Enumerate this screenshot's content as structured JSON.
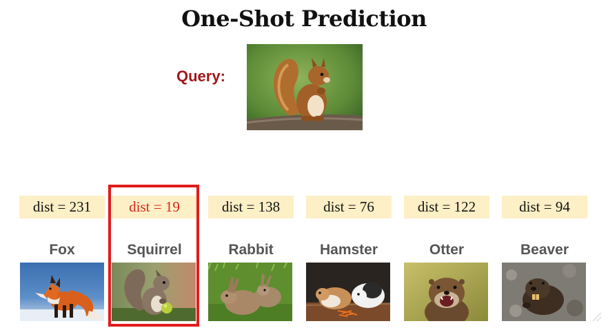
{
  "title": "One-Shot Prediction",
  "query": {
    "label": "Query:"
  },
  "candidates": [
    {
      "name": "Fox",
      "dist": "dist = 231",
      "selected": false
    },
    {
      "name": "Squirrel",
      "dist": "dist = 19",
      "selected": true
    },
    {
      "name": "Rabbit",
      "dist": "dist = 138",
      "selected": false
    },
    {
      "name": "Hamster",
      "dist": "dist = 76",
      "selected": false
    },
    {
      "name": "Otter",
      "dist": "dist = 122",
      "selected": false
    },
    {
      "name": "Beaver",
      "dist": "dist = 94",
      "selected": false
    }
  ],
  "colors": {
    "highlight": "#e21b1b",
    "dist_highlight_text": "#d9261c",
    "query_label": "#a3171a",
    "dist_background": "#fdefc6"
  }
}
